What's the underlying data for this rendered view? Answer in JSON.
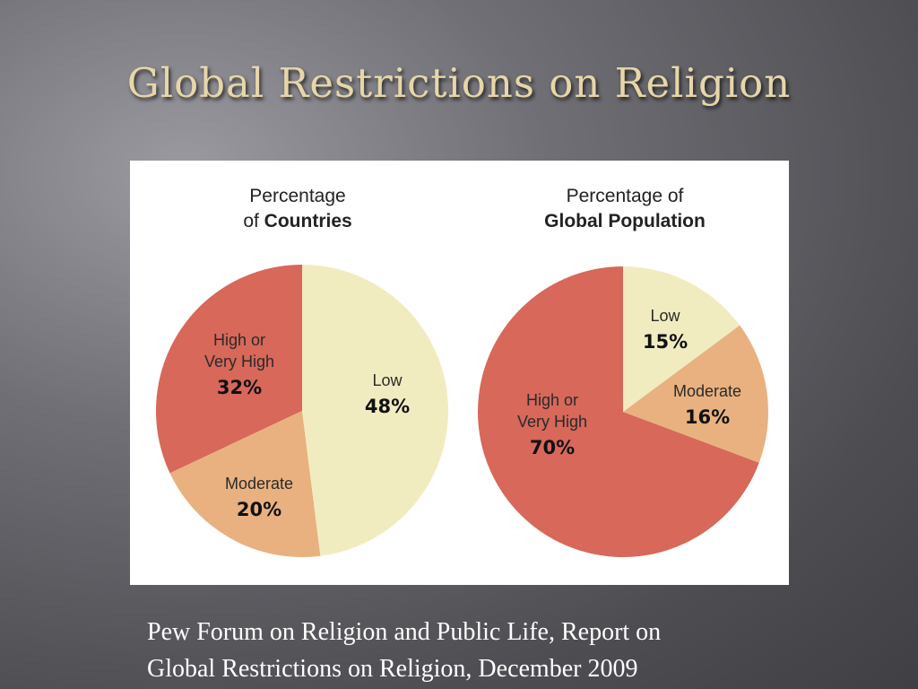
{
  "slide": {
    "title": "Global Restrictions on Religion",
    "caption_lines": [
      "Pew Forum on Religion and Public Life, Report on",
      "Global Restrictions on Religion, December 2009"
    ]
  },
  "colors": {
    "low": "#f1ecc0",
    "moderate": "#e9b17f",
    "high": "#d7685a"
  },
  "chart_data": [
    {
      "type": "pie",
      "title_line1": "Percentage",
      "title_line2_prefix": "of ",
      "title_line2_bold": "Countries",
      "slices": [
        {
          "key": "low",
          "label_lines": [
            "Low"
          ],
          "value": 48,
          "value_label": "48%"
        },
        {
          "key": "moderate",
          "label_lines": [
            "Moderate"
          ],
          "value": 20,
          "value_label": "20%"
        },
        {
          "key": "high",
          "label_lines": [
            "High or",
            "Very High"
          ],
          "value": 32,
          "value_label": "32%"
        }
      ]
    },
    {
      "type": "pie",
      "title_line1": "Percentage of",
      "title_line2_prefix": "",
      "title_line2_bold": "Global Population",
      "slices": [
        {
          "key": "low",
          "label_lines": [
            "Low"
          ],
          "value": 15,
          "value_label": "15%"
        },
        {
          "key": "moderate",
          "label_lines": [
            "Moderate"
          ],
          "value": 16,
          "value_label": "16%"
        },
        {
          "key": "high",
          "label_lines": [
            "High or",
            "Very High"
          ],
          "value": 70,
          "value_label": "70%"
        }
      ]
    }
  ]
}
